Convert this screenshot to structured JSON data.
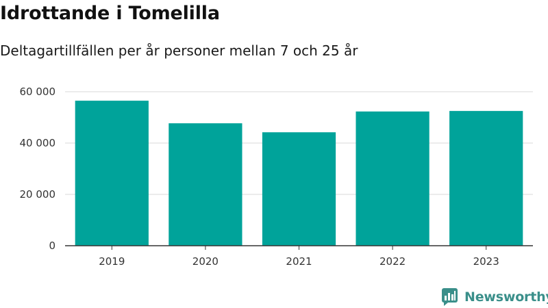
{
  "title": "Idrottande i Tomelilla",
  "subtitle": "Deltagartillfällen per år personer mellan 7 och 25 år",
  "brand": "Newsworthy",
  "colors": {
    "bar": "#00a39a",
    "grid": "#d9d9d9",
    "axis": "#333333",
    "brand": "#3a8f8a"
  },
  "chart_data": {
    "type": "bar",
    "categories": [
      "2019",
      "2020",
      "2021",
      "2022",
      "2023"
    ],
    "values": [
      56500,
      47700,
      44200,
      52300,
      52500
    ],
    "ylim": [
      0,
      60000
    ],
    "yticks": [
      0,
      20000,
      40000,
      60000
    ],
    "ytick_labels": [
      "0",
      "20 000",
      "40 000",
      "60 000"
    ],
    "grid": true,
    "xlabel": "",
    "ylabel": ""
  }
}
